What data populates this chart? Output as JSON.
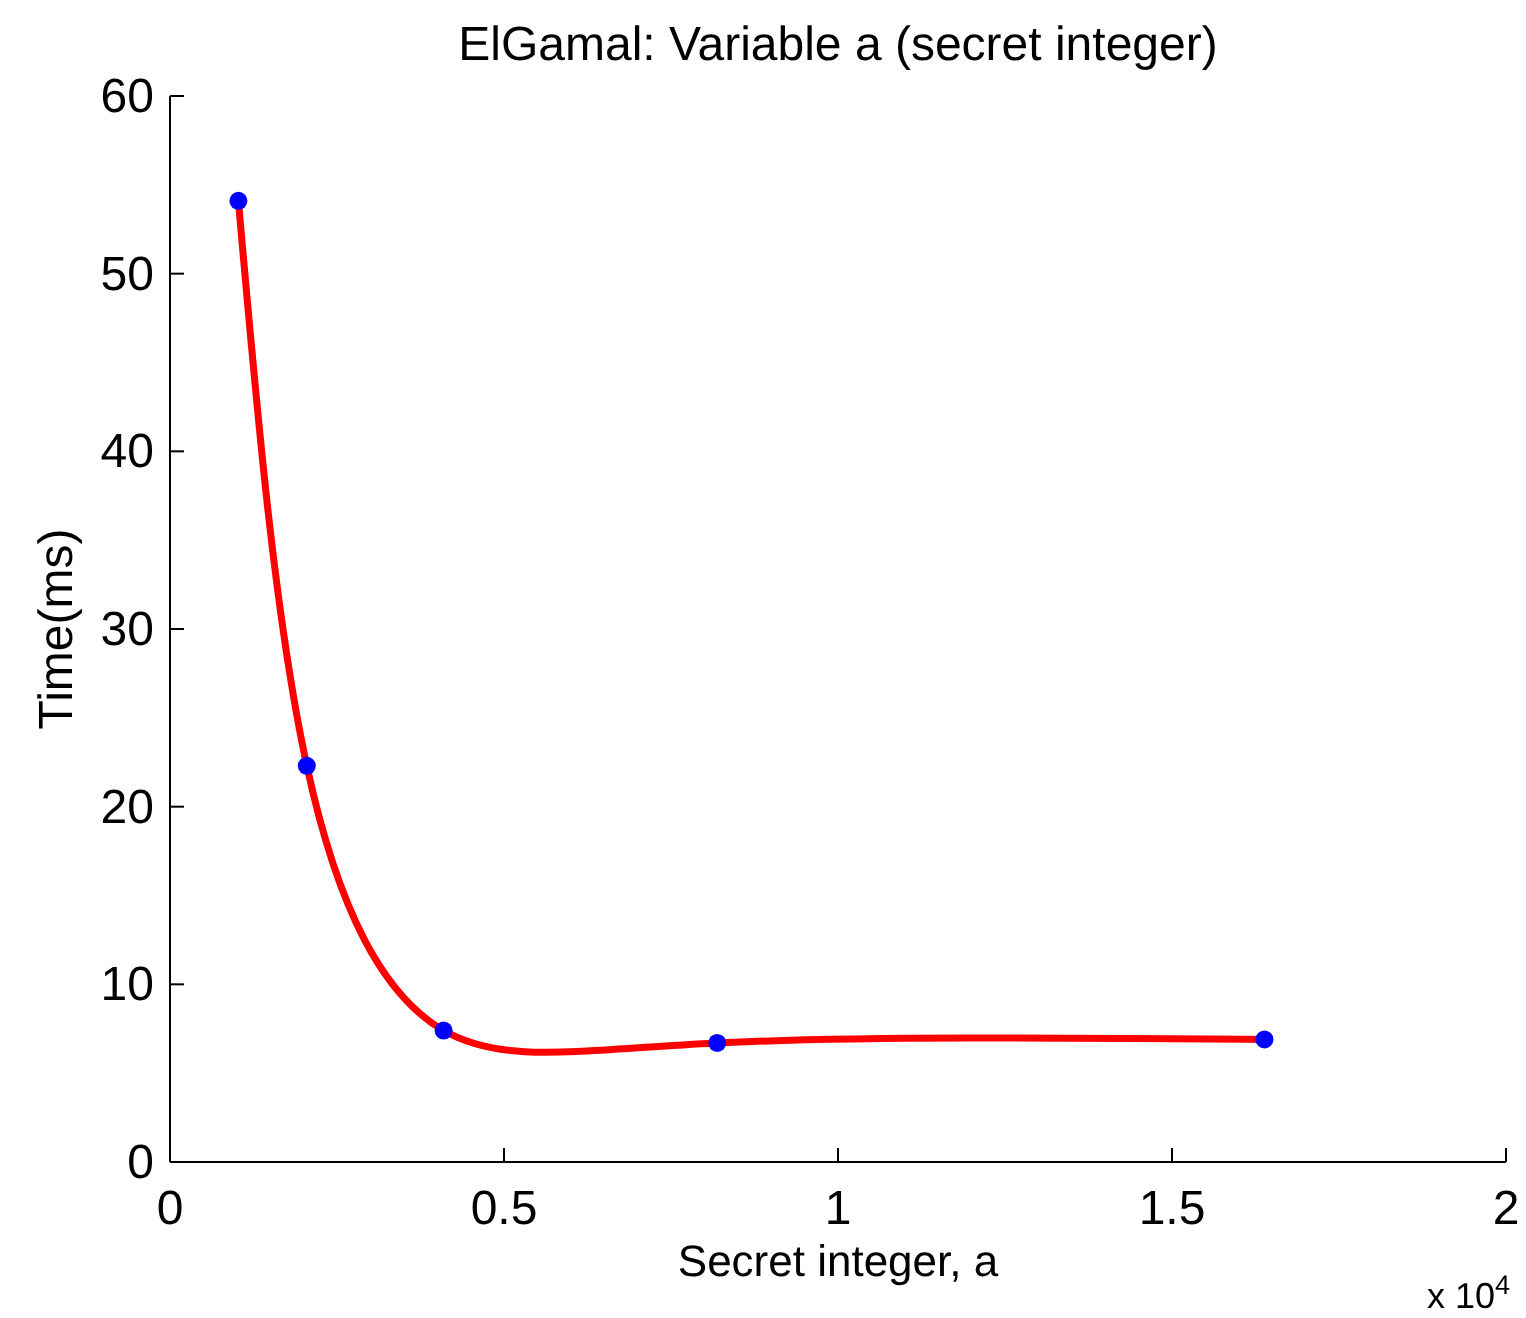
{
  "chart_data": {
    "type": "line",
    "title": "ElGamal: Variable a (secret integer)",
    "xlabel": "Secret integer, a",
    "ylabel": "Time(ms)",
    "x": [
      0.1024,
      0.2048,
      0.4096,
      0.8192,
      1.6384
    ],
    "series": [
      {
        "color": "#ff0000",
        "values": [
          54.1,
          22.3,
          7.4,
          6.7,
          6.9
        ],
        "marker": "none"
      },
      {
        "type": "scatter",
        "color": "#0000ff",
        "values": [
          54.1,
          22.3,
          7.4,
          6.7,
          6.9
        ],
        "marker": "circle"
      }
    ],
    "xlim": [
      0,
      2
    ],
    "xticks": [
      0,
      0.5,
      1,
      1.5,
      2
    ],
    "ylim": [
      0,
      60
    ],
    "yticks": [
      0,
      10,
      20,
      30,
      40,
      50,
      60
    ],
    "grid": false,
    "annotations": [
      "x 10$^{4}$"
    ]
  }
}
